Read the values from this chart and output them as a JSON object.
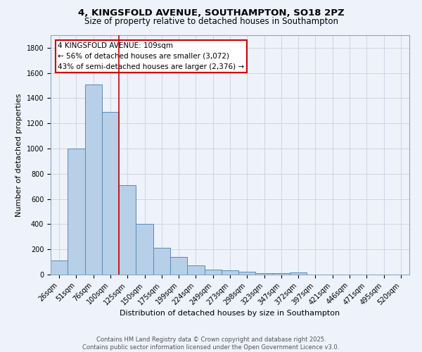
{
  "title_line1": "4, KINGSFOLD AVENUE, SOUTHAMPTON, SO18 2PZ",
  "title_line2": "Size of property relative to detached houses in Southampton",
  "xlabel": "Distribution of detached houses by size in Southampton",
  "ylabel": "Number of detached properties",
  "background_color": "#eef2fa",
  "bar_color": "#b8cfe8",
  "bar_edge_color": "#5b8ab5",
  "categories": [
    "26sqm",
    "51sqm",
    "76sqm",
    "100sqm",
    "125sqm",
    "150sqm",
    "175sqm",
    "199sqm",
    "224sqm",
    "249sqm",
    "273sqm",
    "298sqm",
    "323sqm",
    "347sqm",
    "372sqm",
    "397sqm",
    "421sqm",
    "446sqm",
    "471sqm",
    "495sqm",
    "520sqm"
  ],
  "values": [
    110,
    1000,
    1510,
    1290,
    710,
    400,
    210,
    140,
    70,
    40,
    35,
    20,
    12,
    10,
    18,
    0,
    0,
    0,
    0,
    0,
    0
  ],
  "vline_x_index": 3,
  "vline_color": "#cc0000",
  "annotation_text": "4 KINGSFOLD AVENUE: 109sqm\n← 56% of detached houses are smaller (3,072)\n43% of semi-detached houses are larger (2,376) →",
  "annotation_box_color": "#ffffff",
  "annotation_box_edge": "#cc0000",
  "ylim": [
    0,
    1900
  ],
  "yticks": [
    0,
    200,
    400,
    600,
    800,
    1000,
    1200,
    1400,
    1600,
    1800
  ],
  "footnote": "Contains HM Land Registry data © Crown copyright and database right 2025.\nContains public sector information licensed under the Open Government Licence v3.0.",
  "grid_color": "#c8d0e0",
  "title_fontsize": 9.5,
  "subtitle_fontsize": 8.5,
  "axis_label_fontsize": 8,
  "tick_fontsize": 7,
  "annotation_fontsize": 7.5,
  "footnote_fontsize": 6
}
